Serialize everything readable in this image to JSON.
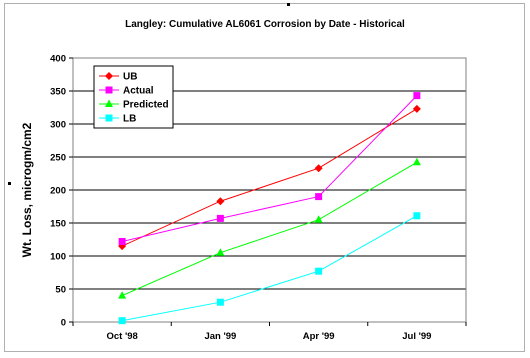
{
  "chart_data": {
    "type": "line",
    "title": "Langley:  Cumulative AL6061 Corrosion by Date - Historical",
    "xlabel": "",
    "ylabel": "Wt. Loss, microgm/cm2",
    "categories": [
      "Oct '98",
      "Jan '99",
      "Apr '99",
      "Jul '99"
    ],
    "ylim": [
      0,
      400
    ],
    "yticks": [
      "0",
      "50",
      "100",
      "150",
      "200",
      "250",
      "300",
      "350",
      "400"
    ],
    "grid": "horizontal",
    "legend_position": "top-left",
    "series": [
      {
        "name": "UB",
        "color": "#ff0000",
        "marker": "diamond",
        "values": [
          115,
          183,
          233,
          323
        ]
      },
      {
        "name": "Actual",
        "color": "#ff00ff",
        "marker": "square",
        "values": [
          122,
          157,
          190,
          343
        ]
      },
      {
        "name": "Predicted",
        "color": "#00ff00",
        "marker": "triangle",
        "values": [
          40,
          105,
          155,
          242
        ]
      },
      {
        "name": "LB",
        "color": "#00ffff",
        "marker": "square",
        "values": [
          2,
          30,
          77,
          161
        ]
      }
    ]
  }
}
